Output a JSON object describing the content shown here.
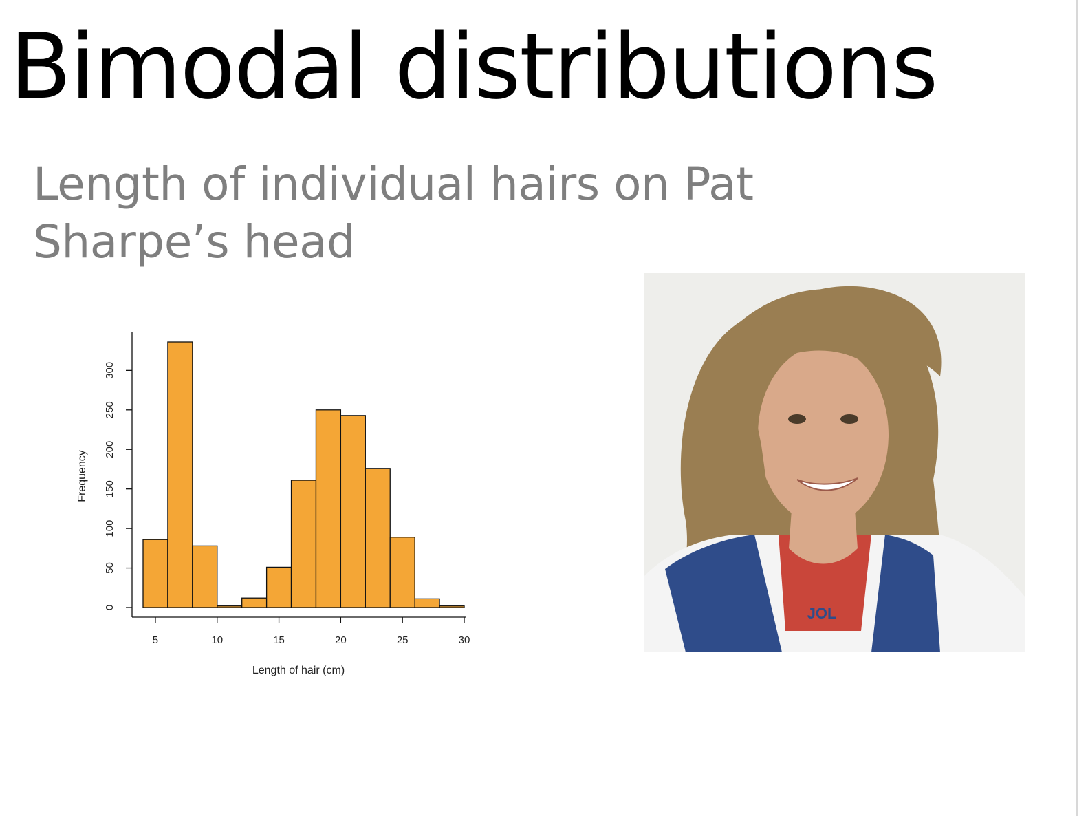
{
  "slide": {
    "title": "Bimodal distributions",
    "subtitle": "Length of individual hairs on Pat Sharpe’s head"
  },
  "chart_data": {
    "type": "bar",
    "title": "",
    "xlabel": "Length of hair (cm)",
    "ylabel": "Frequency",
    "bin_edges": [
      4,
      6,
      8,
      10,
      12,
      14,
      16,
      18,
      20,
      22,
      24,
      26,
      28,
      30
    ],
    "values": [
      86,
      336,
      78,
      2,
      12,
      51,
      161,
      250,
      243,
      176,
      89,
      11,
      2
    ],
    "xlim": [
      4,
      30
    ],
    "ylim": [
      0,
      336
    ],
    "x_ticks": [
      5,
      10,
      15,
      20,
      25,
      30
    ],
    "y_ticks": [
      0,
      50,
      100,
      150,
      200,
      250,
      300
    ],
    "bar_color": "#F4A636",
    "grid": false
  },
  "photo": {
    "icon": "portrait-photo",
    "shirt_text": "JOL",
    "colors": {
      "background": "#eeeeeb",
      "hair": "#9a7e52",
      "skin": "#d9a98a",
      "vest": "#2f4c8a",
      "shirt": "#c9463a",
      "jacket": "#f4f4f4"
    }
  }
}
